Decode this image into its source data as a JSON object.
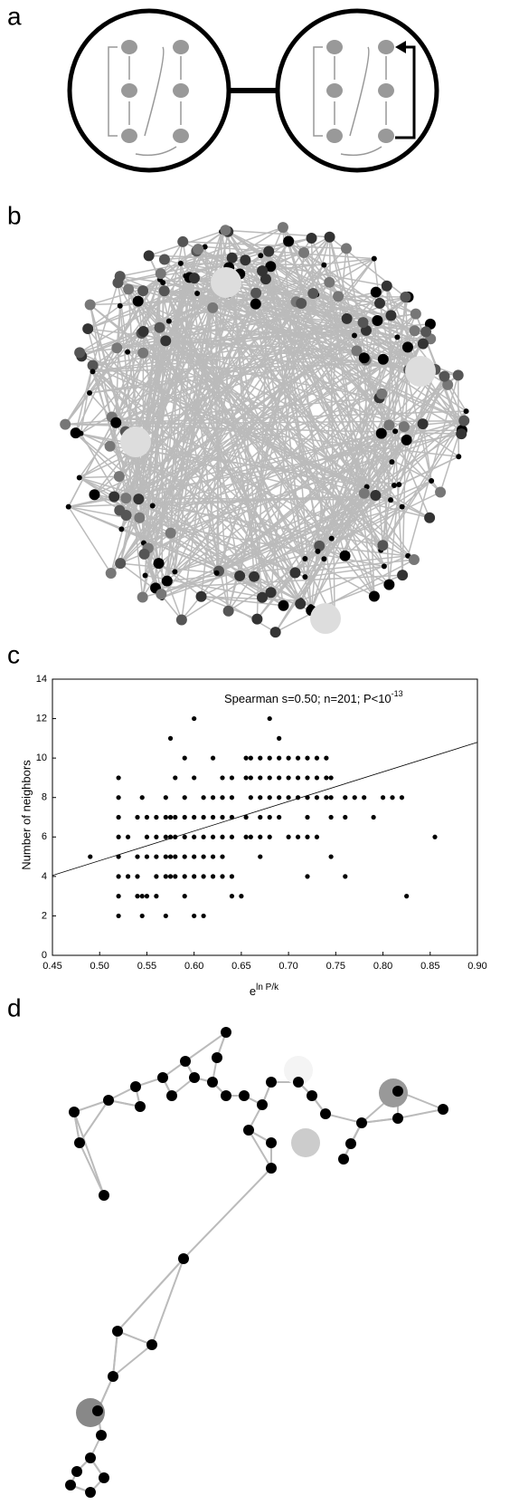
{
  "panel_labels": [
    "a",
    "b",
    "c",
    "d"
  ],
  "chart_data": {
    "type": "scatter",
    "annotation": "Spearman s=0.50; n=201; P<10",
    "annotation_exponent": "-13",
    "x_label": "e",
    "x_label_exponent": "ln P/k",
    "y_label": "Number of neighbors",
    "x": [
      0.49,
      0.52,
      0.52,
      0.52,
      0.52,
      0.52,
      0.52,
      0.52,
      0.52,
      0.53,
      0.53,
      0.54,
      0.54,
      0.54,
      0.54,
      0.545,
      0.545,
      0.545,
      0.55,
      0.55,
      0.55,
      0.55,
      0.56,
      0.56,
      0.56,
      0.56,
      0.56,
      0.57,
      0.57,
      0.57,
      0.57,
      0.57,
      0.57,
      0.575,
      0.575,
      0.575,
      0.575,
      0.575,
      0.58,
      0.58,
      0.58,
      0.58,
      0.58,
      0.59,
      0.59,
      0.59,
      0.59,
      0.59,
      0.59,
      0.59,
      0.6,
      0.6,
      0.6,
      0.6,
      0.6,
      0.6,
      0.6,
      0.61,
      0.61,
      0.61,
      0.61,
      0.61,
      0.61,
      0.62,
      0.62,
      0.62,
      0.62,
      0.62,
      0.62,
      0.63,
      0.63,
      0.63,
      0.63,
      0.63,
      0.63,
      0.64,
      0.64,
      0.64,
      0.64,
      0.64,
      0.64,
      0.65,
      0.655,
      0.655,
      0.655,
      0.655,
      0.66,
      0.66,
      0.66,
      0.66,
      0.67,
      0.67,
      0.67,
      0.67,
      0.67,
      0.67,
      0.68,
      0.68,
      0.68,
      0.68,
      0.68,
      0.68,
      0.69,
      0.69,
      0.69,
      0.69,
      0.69,
      0.7,
      0.7,
      0.7,
      0.7,
      0.71,
      0.71,
      0.71,
      0.71,
      0.72,
      0.72,
      0.72,
      0.72,
      0.72,
      0.72,
      0.73,
      0.73,
      0.73,
      0.73,
      0.74,
      0.74,
      0.74,
      0.745,
      0.745,
      0.745,
      0.745,
      0.76,
      0.76,
      0.76,
      0.77,
      0.78,
      0.79,
      0.8,
      0.81,
      0.82,
      0.825,
      0.855
    ],
    "values": [
      5,
      2,
      3,
      4,
      5,
      6,
      7,
      8,
      9,
      4,
      6,
      3,
      4,
      5,
      7,
      2,
      3,
      8,
      3,
      5,
      6,
      7,
      3,
      4,
      5,
      6,
      7,
      2,
      4,
      5,
      6,
      7,
      8,
      4,
      5,
      6,
      7,
      11,
      4,
      5,
      6,
      7,
      9,
      3,
      4,
      5,
      6,
      7,
      8,
      10,
      2,
      4,
      5,
      6,
      7,
      9,
      12,
      2,
      4,
      5,
      6,
      7,
      8,
      4,
      5,
      6,
      7,
      8,
      10,
      4,
      5,
      6,
      7,
      8,
      9,
      3,
      4,
      6,
      7,
      8,
      9,
      3,
      6,
      7,
      9,
      10,
      6,
      8,
      9,
      10,
      5,
      6,
      7,
      8,
      9,
      10,
      6,
      7,
      8,
      9,
      10,
      12,
      7,
      8,
      9,
      10,
      11,
      6,
      8,
      9,
      10,
      6,
      8,
      9,
      10,
      4,
      6,
      7,
      8,
      9,
      10,
      6,
      8,
      9,
      10,
      8,
      9,
      10,
      5,
      7,
      8,
      9,
      4,
      7,
      8,
      8,
      8,
      7,
      8,
      8,
      8,
      3,
      6
    ],
    "color": "#000000",
    "trend_line": {
      "x": [
        0.45,
        0.9
      ],
      "y": [
        4.05,
        10.8
      ]
    },
    "xlim": [
      0.45,
      0.9
    ],
    "xticks": [
      0.45,
      {
        "value": 0.5,
        "label": "0.50"
      },
      0.55,
      {
        "value": 0.6,
        "label": "0.60"
      },
      0.65,
      {
        "value": 0.7,
        "label": "0.70"
      },
      0.75,
      {
        "value": 0.8,
        "label": "0.80"
      },
      0.85,
      {
        "value": 0.9,
        "label": "0.90"
      }
    ],
    "ylim": [
      0,
      14
    ],
    "yticks": [
      0,
      2,
      4,
      6,
      8,
      10,
      12,
      14
    ]
  }
}
